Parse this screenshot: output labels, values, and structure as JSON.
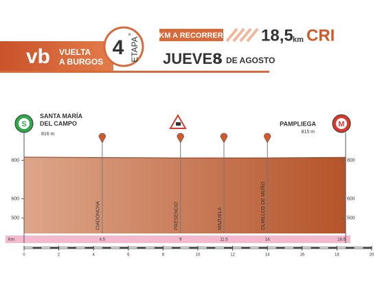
{
  "header": {
    "brand_line1": "VUELTA",
    "brand_line2": "A BURGOS",
    "stage_number": "4",
    "stage_suffix": "ª",
    "stage_word": "ETAPA",
    "distance_caption": "KM A RECORRER",
    "distance": "18,5",
    "distance_unit": "km",
    "discipline": "CRI",
    "weekday": "JUEVES",
    "day": "8",
    "month": "DE AGOSTO"
  },
  "chart_data": {
    "type": "area",
    "color_start": "#dda68a",
    "color_end": "#b5542a",
    "x": [
      0,
      4.5,
      9,
      11.5,
      14,
      18.5
    ],
    "values": [
      816,
      814,
      812,
      812,
      812,
      815
    ],
    "value_labels": [
      "816 m",
      null,
      null,
      null,
      null,
      "815 m"
    ],
    "categories": [
      "SANTA MARÍA DEL CAMPO",
      "CIADONCHA",
      "PRESENCIO",
      "MAZUELA",
      "OLMILLOS DE MUÑO",
      "PAMPLIEGA"
    ],
    "start_icon": "S",
    "finish_icon": "M",
    "km_bar_label": "Km",
    "xlim": [
      0,
      20
    ],
    "xticks": [
      0,
      2,
      4,
      6,
      8,
      10,
      12,
      14,
      16,
      18,
      20
    ],
    "ylim": [
      420,
      830
    ],
    "yticks": [
      800,
      600,
      500
    ]
  }
}
